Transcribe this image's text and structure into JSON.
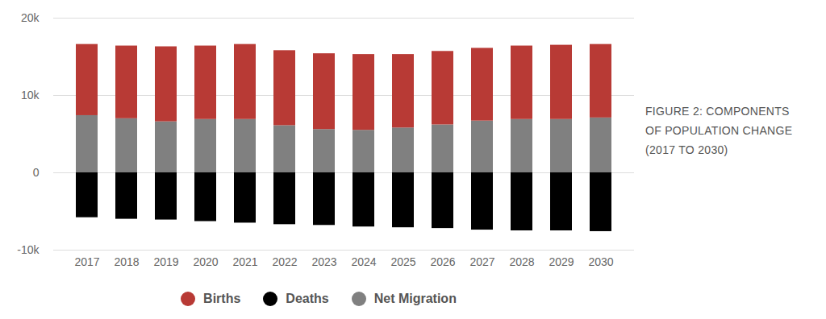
{
  "chart_data": {
    "type": "bar",
    "title": "FIGURE 2: COMPONENTS OF POPULATION CHANGE (2017 TO 2030)",
    "stacked": true,
    "grid": true,
    "legend": "bottom",
    "categories": [
      "2017",
      "2018",
      "2019",
      "2020",
      "2021",
      "2022",
      "2023",
      "2024",
      "2025",
      "2026",
      "2027",
      "2028",
      "2029",
      "2030"
    ],
    "series": [
      {
        "name": "Births",
        "color": "#b83a35",
        "values": [
          9200,
          9400,
          9700,
          9500,
          9700,
          9700,
          9800,
          9800,
          9500,
          9500,
          9400,
          9500,
          9600,
          9500
        ]
      },
      {
        "name": "Deaths",
        "color": "#000000",
        "values": [
          -5800,
          -6000,
          -6100,
          -6300,
          -6500,
          -6700,
          -6800,
          -7000,
          -7100,
          -7200,
          -7400,
          -7500,
          -7500,
          -7600
        ]
      },
      {
        "name": "Net Migration",
        "color": "#808080",
        "values": [
          7400,
          7000,
          6600,
          6900,
          6900,
          6100,
          5600,
          5500,
          5800,
          6200,
          6700,
          6900,
          6900,
          7100
        ]
      }
    ],
    "ylim": [
      -10000,
      20000
    ],
    "yticks": [
      {
        "value": -10000,
        "label": "-10k"
      },
      0,
      {
        "value": 10000,
        "label": "10k"
      },
      {
        "value": 20000,
        "label": "20k"
      }
    ]
  }
}
